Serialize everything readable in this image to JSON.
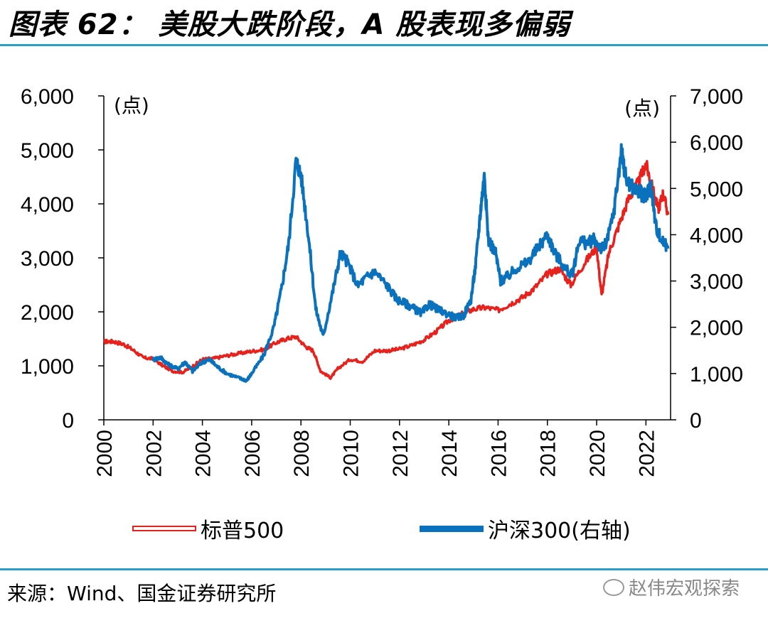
{
  "title": "图表 62： 美股大跌阶段，A 股表现多偏弱",
  "source": "来源：Wind、国金证券研究所",
  "watermark": "赵伟宏观探索",
  "colors": {
    "rule": "#2a9fc9",
    "sp500": "#e8211c",
    "csi300": "#0a72bd"
  },
  "chart_data": {
    "type": "line",
    "left_unit": "(点)",
    "right_unit": "(点)",
    "x_ticks": [
      "2000",
      "2002",
      "2004",
      "2006",
      "2008",
      "2010",
      "2012",
      "2014",
      "2016",
      "2018",
      "2020",
      "2022"
    ],
    "x_range": [
      2000,
      2023
    ],
    "left_ylim": [
      0,
      6000
    ],
    "left_ticks": [
      "0",
      "1,000",
      "2,000",
      "3,000",
      "4,000",
      "5,000",
      "6,000"
    ],
    "right_ylim": [
      0,
      7000
    ],
    "right_ticks": [
      "0",
      "1,000",
      "2,000",
      "3,000",
      "4,000",
      "5,000",
      "6,000",
      "7,000"
    ],
    "grid": false,
    "legend_position": "bottom",
    "series": [
      {
        "name": "标普500",
        "axis": "left",
        "x": [
          2000.0,
          2000.4,
          2000.8,
          2001.2,
          2001.6,
          2002.0,
          2002.4,
          2002.8,
          2003.2,
          2003.6,
          2004.0,
          2004.5,
          2005.0,
          2005.5,
          2006.0,
          2006.5,
          2007.0,
          2007.4,
          2007.8,
          2008.2,
          2008.5,
          2008.8,
          2009.2,
          2009.5,
          2010.0,
          2010.5,
          2011.0,
          2011.5,
          2012.0,
          2012.5,
          2013.0,
          2013.5,
          2014.0,
          2014.5,
          2015.0,
          2015.5,
          2016.0,
          2016.5,
          2017.0,
          2017.5,
          2018.0,
          2018.5,
          2018.95,
          2019.5,
          2020.0,
          2020.2,
          2020.5,
          2020.9,
          2021.3,
          2021.7,
          2022.0,
          2022.2,
          2022.5,
          2022.7,
          2022.9
        ],
        "values": [
          1450,
          1450,
          1400,
          1290,
          1150,
          1130,
          1000,
          900,
          880,
          990,
          1120,
          1140,
          1190,
          1230,
          1270,
          1300,
          1430,
          1500,
          1540,
          1350,
          1280,
          900,
          780,
          950,
          1120,
          1080,
          1280,
          1280,
          1310,
          1380,
          1480,
          1640,
          1840,
          1950,
          2050,
          2080,
          2030,
          2150,
          2270,
          2450,
          2700,
          2800,
          2500,
          2900,
          3200,
          2300,
          3100,
          3600,
          4100,
          4400,
          4750,
          4400,
          3900,
          4200,
          3800
        ]
      },
      {
        "name": "沪深300(右轴)",
        "axis": "right",
        "x": [
          2002.0,
          2002.3,
          2002.6,
          2003.0,
          2003.3,
          2003.6,
          2004.0,
          2004.3,
          2004.6,
          2005.0,
          2005.5,
          2005.8,
          2006.0,
          2006.5,
          2006.9,
          2007.2,
          2007.5,
          2007.8,
          2008.0,
          2008.3,
          2008.6,
          2008.9,
          2009.3,
          2009.6,
          2009.9,
          2010.3,
          2010.7,
          2011.0,
          2011.5,
          2011.9,
          2012.3,
          2012.6,
          2012.9,
          2013.2,
          2013.5,
          2013.9,
          2014.3,
          2014.6,
          2014.9,
          2015.1,
          2015.3,
          2015.45,
          2015.6,
          2015.9,
          2016.1,
          2016.4,
          2016.8,
          2017.2,
          2017.6,
          2018.0,
          2018.3,
          2018.7,
          2019.0,
          2019.3,
          2019.6,
          2019.9,
          2020.2,
          2020.4,
          2020.7,
          2021.0,
          2021.2,
          2021.5,
          2021.8,
          2022.0,
          2022.2,
          2022.4,
          2022.6,
          2022.9
        ],
        "values": [
          1300,
          1350,
          1200,
          1100,
          1250,
          1050,
          1250,
          1300,
          1150,
          1000,
          900,
          850,
          1000,
          1400,
          2000,
          2800,
          3800,
          5600,
          5300,
          4000,
          2400,
          1800,
          2800,
          3600,
          3400,
          2900,
          3100,
          3200,
          2900,
          2600,
          2500,
          2400,
          2300,
          2500,
          2400,
          2300,
          2200,
          2250,
          2600,
          3400,
          4600,
          5300,
          3900,
          3600,
          3000,
          3100,
          3300,
          3400,
          3700,
          4000,
          3600,
          3300,
          3100,
          3900,
          3800,
          3900,
          3700,
          3800,
          4500,
          5800,
          5200,
          5000,
          4900,
          4800,
          5100,
          4200,
          3900,
          3700
        ]
      }
    ]
  }
}
